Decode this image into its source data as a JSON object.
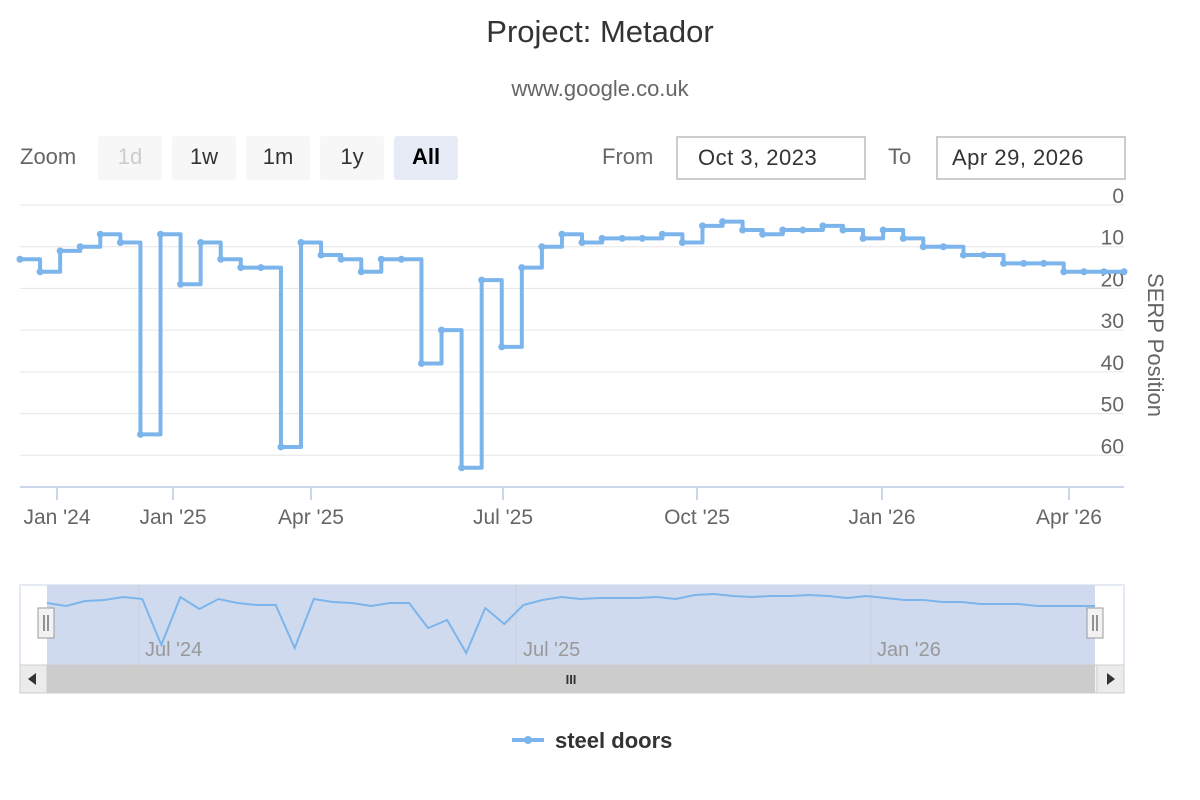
{
  "title": "Project: Metador",
  "subtitle": "www.google.co.uk",
  "range_selector": {
    "zoom_label": "Zoom",
    "buttons": [
      {
        "label": "1d",
        "state": "disabled"
      },
      {
        "label": "1w",
        "state": "normal"
      },
      {
        "label": "1m",
        "state": "normal"
      },
      {
        "label": "1y",
        "state": "normal"
      },
      {
        "label": "All",
        "state": "active"
      }
    ],
    "from_label": "From",
    "from_value": "Oct 3, 2023",
    "to_label": "To",
    "to_value": "Apr 29, 2026"
  },
  "navigator": {
    "labels": [
      "Jul '24",
      "Jul '25",
      "Jan '26"
    ],
    "scroll_grip": "III",
    "left_arrow": "◀",
    "right_arrow": "▶"
  },
  "colors": {
    "series": "#7cb5ec",
    "navigator_fill": "#d0daee",
    "grid": "#e6e6e6",
    "axis": "#ccd6eb"
  },
  "chart_data": {
    "type": "line",
    "title": "Project: Metador",
    "subtitle": "www.google.co.uk",
    "ylabel": "SERP Position",
    "ylim": [
      0,
      70
    ],
    "y_reversed": true,
    "y_ticks": [
      0,
      10,
      20,
      30,
      40,
      50,
      60
    ],
    "x_ticks": [
      "Jan '24",
      "Jan '25",
      "Apr '25",
      "Jul '25",
      "Oct '25",
      "Jan '26",
      "Apr '26"
    ],
    "legend": {
      "position": "bottom-center"
    },
    "series": [
      {
        "name": "steel doors",
        "points": [
          [
            "Dec '23",
            13
          ],
          [
            "Dec '23",
            16
          ],
          [
            "Dec '23",
            11
          ],
          [
            "Jan '24",
            10
          ],
          [
            "Jan '24",
            7
          ],
          [
            "Jan '24",
            9
          ],
          [
            "Jan '24",
            55
          ],
          [
            "Jan '24",
            7
          ],
          [
            "Jan '24",
            19
          ],
          [
            "Jan '24",
            9
          ],
          [
            "Jan '24",
            13
          ],
          [
            "Feb '24",
            15
          ],
          [
            "Mar '24",
            15
          ],
          [
            "Mar '24",
            58
          ],
          [
            "Mar '24",
            9
          ],
          [
            "Apr '24",
            12
          ],
          [
            "May '24",
            13
          ],
          [
            "May '24",
            16
          ],
          [
            "Jun '24",
            13
          ],
          [
            "Jul '24",
            13
          ],
          [
            "Jul '24",
            38
          ],
          [
            "Jul '24",
            30
          ],
          [
            "Jul '24",
            63
          ],
          [
            "Jul '24",
            18
          ],
          [
            "Jul '24",
            34
          ],
          [
            "Aug '24",
            15
          ],
          [
            "Aug '24",
            10
          ],
          [
            "Aug '24",
            7
          ],
          [
            "Sep '24",
            9
          ],
          [
            "Oct '24",
            8
          ],
          [
            "Nov '24",
            8
          ],
          [
            "Dec '24",
            8
          ],
          [
            "Jan '25",
            7
          ],
          [
            "Jan '25",
            9
          ],
          [
            "Jan '25",
            5
          ],
          [
            "Feb '25",
            4
          ],
          [
            "Feb '25",
            6
          ],
          [
            "Mar '25",
            7
          ],
          [
            "Apr '25",
            6
          ],
          [
            "Apr '25",
            6
          ],
          [
            "May '25",
            5
          ],
          [
            "Jun '25",
            6
          ],
          [
            "Jul '25",
            8
          ],
          [
            "Aug '25",
            6
          ],
          [
            "Sep '25",
            8
          ],
          [
            "Oct '25",
            10
          ],
          [
            "Oct '25",
            10
          ],
          [
            "Nov '25",
            12
          ],
          [
            "Dec '25",
            12
          ],
          [
            "Jan '26",
            14
          ],
          [
            "Jan '26",
            14
          ],
          [
            "Feb '26",
            14
          ],
          [
            "Mar '26",
            16
          ],
          [
            "Mar '26",
            16
          ],
          [
            "Apr '26",
            16
          ],
          [
            "Apr '26",
            16
          ]
        ]
      }
    ]
  }
}
